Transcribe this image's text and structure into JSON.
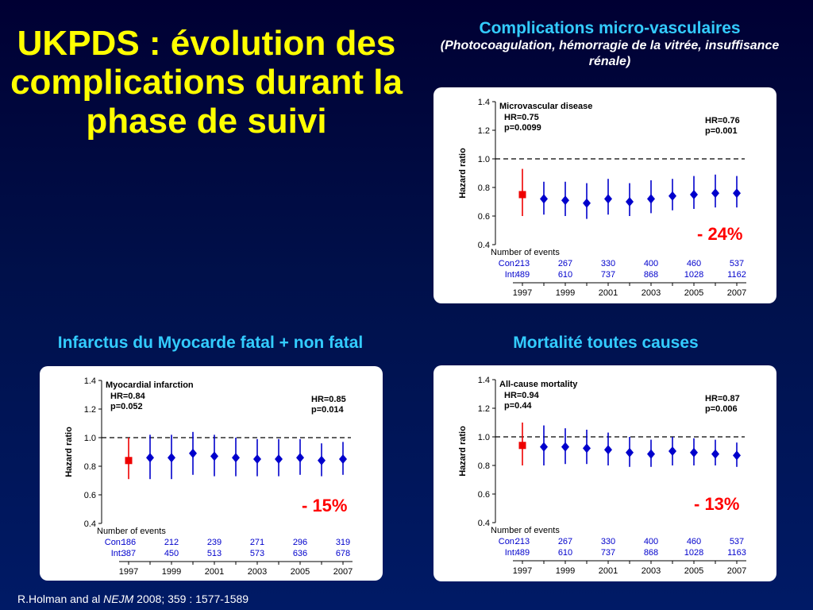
{
  "title": "UKPDS : évolution des complications durant la phase de suivi",
  "headings": {
    "micro_main": "Complications micro-vasculaires",
    "micro_sub": "(Photocoagulation, hémorragie de la vitrée, insuffisance rénale)",
    "mi": "Infarctus du Myocarde fatal + non fatal",
    "mortality": "Mortalité toutes causes"
  },
  "reductions": {
    "micro": "- 24%",
    "mi": "- 15%",
    "mortality": "- 13%"
  },
  "citation": {
    "pre": "R.Holman and al ",
    "journal": "NEJM",
    "post": " 2008; 359 : 1577-1589"
  },
  "colors": {
    "first_point": "#ee0000",
    "points": "#0000cc",
    "title": "#ffff00",
    "heading": "#33ccff",
    "reduction": "#ff0000"
  },
  "chart_data": [
    {
      "type": "scatter",
      "title": "Microvascular disease",
      "ylabel": "Hazard ratio",
      "ylim": [
        0.4,
        1.4
      ],
      "yticks": [
        "0.4",
        "0.6",
        "0.8",
        "1.0",
        "1.2",
        "1.4"
      ],
      "reference_line": 1.0,
      "hr_left": [
        "HR=0.75",
        "p=0.0099"
      ],
      "hr_right": [
        "HR=0.76",
        "p=0.001"
      ],
      "x": [
        1997,
        1998,
        1999,
        2000,
        2001,
        2002,
        2003,
        2004,
        2005,
        2006,
        2007
      ],
      "hr": [
        0.75,
        0.72,
        0.71,
        0.69,
        0.72,
        0.7,
        0.72,
        0.74,
        0.75,
        0.76,
        0.76
      ],
      "ci_low": [
        0.6,
        0.61,
        0.6,
        0.58,
        0.61,
        0.6,
        0.62,
        0.64,
        0.65,
        0.66,
        0.66
      ],
      "ci_high": [
        0.93,
        0.84,
        0.84,
        0.83,
        0.86,
        0.83,
        0.85,
        0.86,
        0.88,
        0.89,
        0.88
      ],
      "events_label": "Number of events",
      "event_years": [
        1997,
        1999,
        2001,
        2003,
        2005,
        2007
      ],
      "con_label": "Con:",
      "int_label": "Int:",
      "con": [
        "213",
        "267",
        "330",
        "400",
        "460",
        "537"
      ],
      "int": [
        "489",
        "610",
        "737",
        "868",
        "1028",
        "1162"
      ],
      "xticks": [
        "1997",
        "1999",
        "2001",
        "2003",
        "2005",
        "2007"
      ]
    },
    {
      "type": "scatter",
      "title": "Myocardial infarction",
      "ylabel": "Hazard ratio",
      "ylim": [
        0.4,
        1.4
      ],
      "yticks": [
        "0.4",
        "0.6",
        "0.8",
        "1.0",
        "1.2",
        "1.4"
      ],
      "reference_line": 1.0,
      "hr_left": [
        "HR=0.84",
        "p=0.052"
      ],
      "hr_right": [
        "HR=0.85",
        "p=0.014"
      ],
      "x": [
        1997,
        1998,
        1999,
        2000,
        2001,
        2002,
        2003,
        2004,
        2005,
        2006,
        2007
      ],
      "hr": [
        0.84,
        0.86,
        0.86,
        0.89,
        0.87,
        0.86,
        0.85,
        0.85,
        0.86,
        0.84,
        0.85
      ],
      "ci_low": [
        0.71,
        0.71,
        0.71,
        0.74,
        0.73,
        0.73,
        0.73,
        0.73,
        0.74,
        0.73,
        0.74
      ],
      "ci_high": [
        1.0,
        1.02,
        1.02,
        1.04,
        1.02,
        1.0,
        0.99,
        0.99,
        0.99,
        0.96,
        0.97
      ],
      "events_label": "Number of events",
      "event_years": [
        1997,
        1999,
        2001,
        2003,
        2005,
        2007
      ],
      "con_label": "Con:",
      "int_label": "Int:",
      "con": [
        "186",
        "212",
        "239",
        "271",
        "296",
        "319"
      ],
      "int": [
        "387",
        "450",
        "513",
        "573",
        "636",
        "678"
      ],
      "xticks": [
        "1997",
        "1999",
        "2001",
        "2003",
        "2005",
        "2007"
      ]
    },
    {
      "type": "scatter",
      "title": "All-cause mortality",
      "ylabel": "Hazard ratio",
      "ylim": [
        0.4,
        1.4
      ],
      "yticks": [
        "0.4",
        "0.6",
        "0.8",
        "1.0",
        "1.2",
        "1.4"
      ],
      "reference_line": 1.0,
      "hr_left": [
        "HR=0.94",
        "p=0.44"
      ],
      "hr_right": [
        "HR=0.87",
        "p=0.006"
      ],
      "x": [
        1997,
        1998,
        1999,
        2000,
        2001,
        2002,
        2003,
        2004,
        2005,
        2006,
        2007
      ],
      "hr": [
        0.94,
        0.93,
        0.93,
        0.92,
        0.91,
        0.89,
        0.88,
        0.9,
        0.89,
        0.88,
        0.87
      ],
      "ci_low": [
        0.8,
        0.8,
        0.81,
        0.81,
        0.8,
        0.79,
        0.79,
        0.8,
        0.8,
        0.8,
        0.79
      ],
      "ci_high": [
        1.1,
        1.08,
        1.06,
        1.05,
        1.03,
        1.0,
        0.98,
        1.0,
        0.99,
        0.98,
        0.96
      ],
      "events_label": "Number of events",
      "event_years": [
        1997,
        1999,
        2001,
        2003,
        2005,
        2007
      ],
      "con_label": "Con:",
      "int_label": "Int:",
      "con": [
        "213",
        "267",
        "330",
        "400",
        "460",
        "537"
      ],
      "int": [
        "489",
        "610",
        "737",
        "868",
        "1028",
        "1163"
      ],
      "xticks": [
        "1997",
        "1999",
        "2001",
        "2003",
        "2005",
        "2007"
      ]
    }
  ]
}
